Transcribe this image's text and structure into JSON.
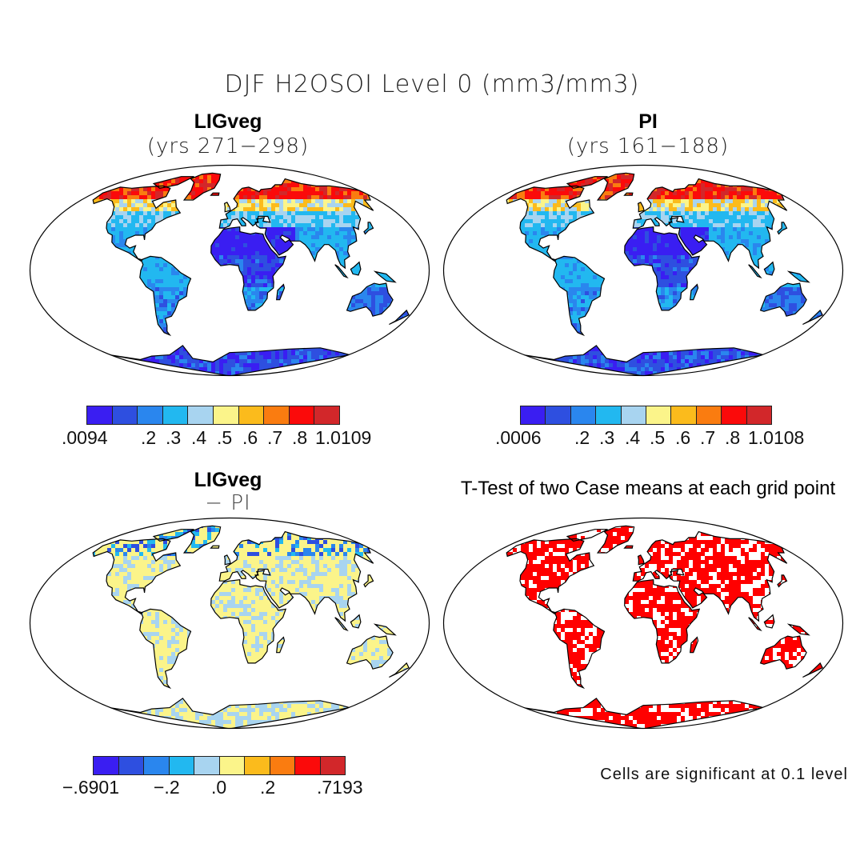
{
  "figure": {
    "title": "DJF H2OSOI Level 0 (mm3/mm3)"
  },
  "panels": [
    {
      "id": "ligveg",
      "title": "LIGveg",
      "subtitle": "(yrs 271−298)",
      "type": "soil-moisture"
    },
    {
      "id": "pi",
      "title": "PI",
      "subtitle": "(yrs 161−188)",
      "type": "soil-moisture"
    },
    {
      "id": "diff",
      "title": "LIGveg",
      "subtitle": "− PI",
      "type": "difference"
    },
    {
      "id": "ttest",
      "title": "T-Test of two Case means at each grid point",
      "subtitle": "",
      "type": "significance"
    }
  ],
  "colorbars": {
    "ligveg": {
      "labels": [
        ".0094",
        ".2",
        ".3",
        ".4",
        ".5",
        ".6",
        ".7",
        ".8",
        "1.0109"
      ]
    },
    "pi": {
      "labels": [
        ".0006",
        ".2",
        ".3",
        ".4",
        ".5",
        ".6",
        ".7",
        ".8",
        "1.0108"
      ]
    },
    "diff": {
      "labels": [
        "−.6901",
        "−.2",
        ".0",
        ".2",
        ".7193"
      ]
    }
  },
  "palette": [
    "#3a1ef2",
    "#2e4fe0",
    "#2a86ee",
    "#22b8f0",
    "#a8d4f0",
    "#fbf48a",
    "#fbbb1c",
    "#fa7c10",
    "#fb0a0a",
    "#d2272a"
  ],
  "significance_color": "#ff0000",
  "note": "Cells are significant at 0.1 level"
}
